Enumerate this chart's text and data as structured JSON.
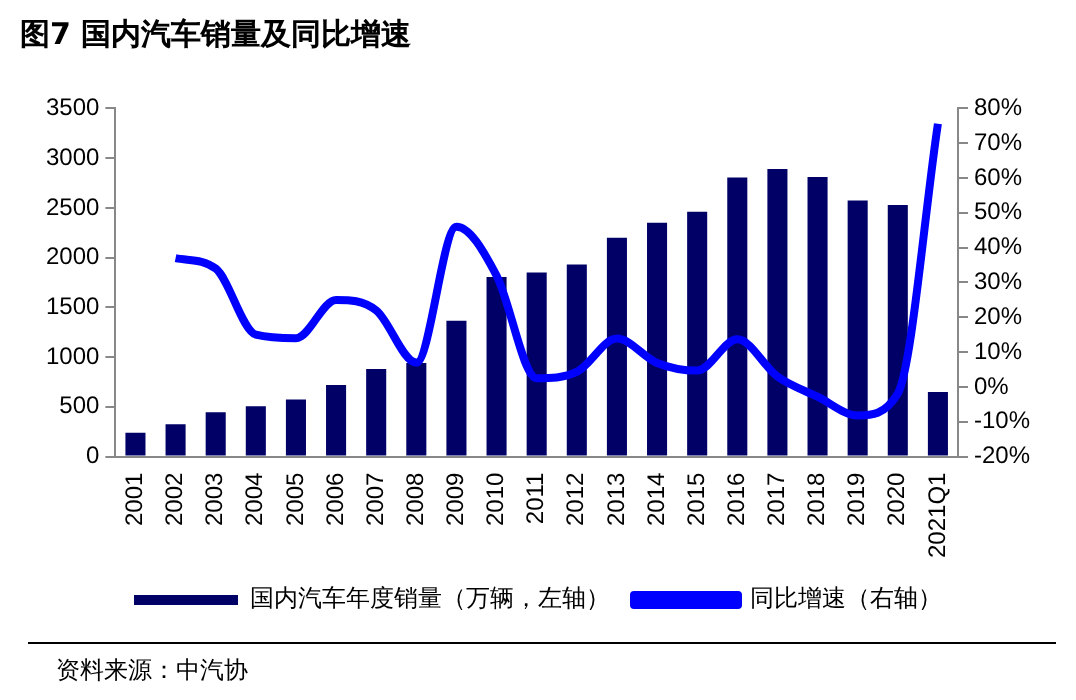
{
  "chart_data": {
    "type": "bar",
    "title": "图7  国内汽车销量及同比增速",
    "categories": [
      "2001",
      "2002",
      "2003",
      "2004",
      "2005",
      "2006",
      "2007",
      "2008",
      "2009",
      "2010",
      "2011",
      "2012",
      "2013",
      "2014",
      "2015",
      "2016",
      "2017",
      "2018",
      "2019",
      "2020",
      "2021Q1"
    ],
    "series": [
      {
        "name": "国内汽车年度销量（万辆，左轴）",
        "color": "#000066",
        "values": [
          240,
          325,
          445,
          505,
          575,
          720,
          880,
          940,
          1365,
          1805,
          1850,
          1930,
          2200,
          2350,
          2460,
          2805,
          2890,
          2810,
          2575,
          2530,
          650
        ]
      },
      {
        "name": "同比增速（右轴）",
        "type": "line",
        "axis": "y2",
        "color": "#0000ff",
        "values": [
          null,
          37,
          34,
          15,
          14,
          25,
          22,
          7,
          46,
          32,
          2.5,
          4.3,
          13.9,
          6.9,
          4.7,
          13.7,
          3,
          -2.8,
          -8.2,
          -1.9,
          75.6
        ]
      }
    ],
    "ylim": [
      0,
      3500
    ],
    "yticks": [
      0,
      500,
      1000,
      1500,
      2000,
      2500,
      3000,
      3500
    ],
    "y2lim": [
      -20,
      80
    ],
    "y2ticks": [
      {
        "value": -20,
        "label": "-20%"
      },
      {
        "value": -10,
        "label": "-10%"
      },
      {
        "value": 0,
        "label": "0%"
      },
      {
        "value": 10,
        "label": "10%"
      },
      {
        "value": 20,
        "label": "20%"
      },
      {
        "value": 30,
        "label": "30%"
      },
      {
        "value": 40,
        "label": "40%"
      },
      {
        "value": 50,
        "label": "50%"
      },
      {
        "value": 60,
        "label": "60%"
      },
      {
        "value": 70,
        "label": "70%"
      },
      {
        "value": 80,
        "label": "80%"
      }
    ],
    "grid": false,
    "legend": "bottom",
    "marker": "none",
    "annotations": [
      "资料来源：中汽协"
    ]
  }
}
